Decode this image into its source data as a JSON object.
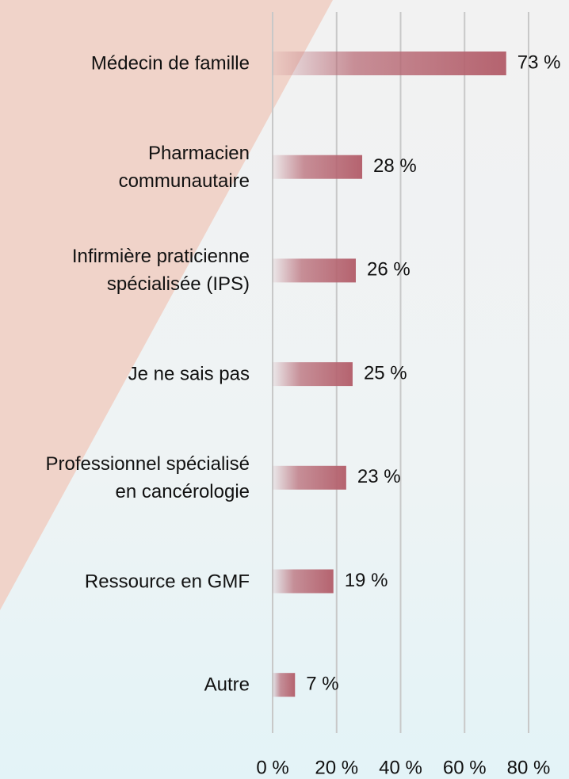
{
  "chart_data": {
    "type": "barh",
    "categories": [
      "Médecin de famille",
      "Pharmacien\ncommunautaire",
      "Infirmière praticienne\nspécialisée (IPS)",
      "Je ne sais pas",
      "Professionnel spécialisé\nen cancérologie",
      "Ressource en GMF",
      "Autre"
    ],
    "values": [
      73,
      28,
      26,
      25,
      23,
      19,
      7
    ],
    "value_labels": [
      "73 %",
      "28 %",
      "26 %",
      "25 %",
      "23 %",
      "19 %",
      "7 %"
    ],
    "color": "#b5636f",
    "xlim": [
      0,
      80
    ],
    "xticks": [
      {
        "value": 0,
        "label": "0 %"
      },
      {
        "value": 20,
        "label": "20 %"
      },
      {
        "value": 40,
        "label": "40 %"
      },
      {
        "value": 60,
        "label": "60 %"
      },
      {
        "value": 80,
        "label": "80 %"
      }
    ],
    "grid": true
  }
}
